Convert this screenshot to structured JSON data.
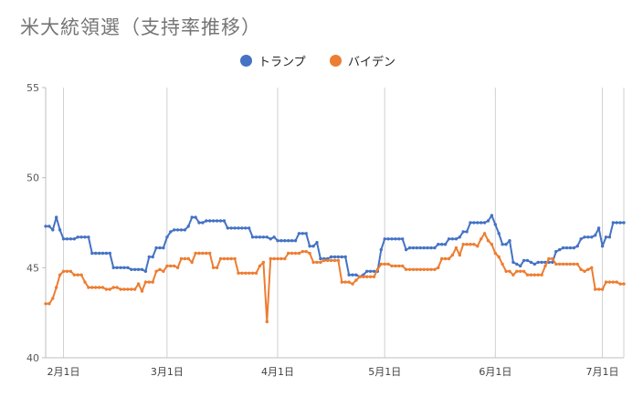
{
  "chart_data": {
    "type": "line",
    "title": "米大統領選（支持率推移）",
    "ylim": [
      40,
      55
    ],
    "yticks": [
      "40",
      "45",
      "50",
      "55"
    ],
    "xlim": [
      "2020-01-27",
      "2020-07-07"
    ],
    "xticks": [
      {
        "date": "2020-02-01",
        "label": "2月1日"
      },
      {
        "date": "2020-03-01",
        "label": "3月1日"
      },
      {
        "date": "2020-04-01",
        "label": "4月1日"
      },
      {
        "date": "2020-05-01",
        "label": "5月1日"
      },
      {
        "date": "2020-06-01",
        "label": "6月1日"
      },
      {
        "date": "2020-07-01",
        "label": "7月1日"
      }
    ],
    "grid": "vertical lines at month starts",
    "legend": "top-center",
    "series": [
      {
        "name": "トランプ",
        "color": "#4472c4",
        "points": [
          [
            "2020-01-27",
            47.3
          ],
          [
            "2020-01-28",
            47.3
          ],
          [
            "2020-01-29",
            47.1
          ],
          [
            "2020-01-30",
            47.8
          ],
          [
            "2020-01-31",
            47.1
          ],
          [
            "2020-02-01",
            46.6
          ],
          [
            "2020-02-03",
            46.6
          ],
          [
            "2020-02-05",
            46.7
          ],
          [
            "2020-02-08",
            46.7
          ],
          [
            "2020-02-09",
            45.8
          ],
          [
            "2020-02-14",
            45.8
          ],
          [
            "2020-02-15",
            45.0
          ],
          [
            "2020-02-19",
            45.0
          ],
          [
            "2020-02-20",
            44.9
          ],
          [
            "2020-02-23",
            44.9
          ],
          [
            "2020-02-24",
            44.8
          ],
          [
            "2020-02-25",
            45.6
          ],
          [
            "2020-02-26",
            45.6
          ],
          [
            "2020-02-27",
            46.1
          ],
          [
            "2020-02-29",
            46.1
          ],
          [
            "2020-03-01",
            46.7
          ],
          [
            "2020-03-02",
            47.0
          ],
          [
            "2020-03-03",
            47.1
          ],
          [
            "2020-03-06",
            47.1
          ],
          [
            "2020-03-07",
            47.3
          ],
          [
            "2020-03-08",
            47.8
          ],
          [
            "2020-03-09",
            47.8
          ],
          [
            "2020-03-10",
            47.5
          ],
          [
            "2020-03-11",
            47.5
          ],
          [
            "2020-03-12",
            47.6
          ],
          [
            "2020-03-17",
            47.6
          ],
          [
            "2020-03-18",
            47.2
          ],
          [
            "2020-03-24",
            47.2
          ],
          [
            "2020-03-25",
            46.7
          ],
          [
            "2020-03-29",
            46.7
          ],
          [
            "2020-03-30",
            46.6
          ],
          [
            "2020-03-31",
            46.7
          ],
          [
            "2020-04-01",
            46.5
          ],
          [
            "2020-04-06",
            46.5
          ],
          [
            "2020-04-07",
            46.9
          ],
          [
            "2020-04-09",
            46.9
          ],
          [
            "2020-04-10",
            46.2
          ],
          [
            "2020-04-11",
            46.2
          ],
          [
            "2020-04-12",
            46.4
          ],
          [
            "2020-04-13",
            45.5
          ],
          [
            "2020-04-15",
            45.5
          ],
          [
            "2020-04-16",
            45.6
          ],
          [
            "2020-04-20",
            45.6
          ],
          [
            "2020-04-21",
            44.6
          ],
          [
            "2020-04-24",
            44.5
          ],
          [
            "2020-04-25",
            44.6
          ],
          [
            "2020-04-26",
            44.8
          ],
          [
            "2020-04-29",
            44.8
          ],
          [
            "2020-04-30",
            46.0
          ],
          [
            "2020-05-01",
            46.6
          ],
          [
            "2020-05-06",
            46.6
          ],
          [
            "2020-05-07",
            46.0
          ],
          [
            "2020-05-08",
            46.1
          ],
          [
            "2020-05-15",
            46.1
          ],
          [
            "2020-05-16",
            46.3
          ],
          [
            "2020-05-18",
            46.3
          ],
          [
            "2020-05-19",
            46.6
          ],
          [
            "2020-05-22",
            46.7
          ],
          [
            "2020-05-23",
            47.0
          ],
          [
            "2020-05-24",
            47.0
          ],
          [
            "2020-05-25",
            47.5
          ],
          [
            "2020-05-29",
            47.5
          ],
          [
            "2020-05-30",
            47.6
          ],
          [
            "2020-05-31",
            47.9
          ],
          [
            "2020-06-01",
            47.4
          ],
          [
            "2020-06-02",
            46.9
          ],
          [
            "2020-06-03",
            46.3
          ],
          [
            "2020-06-05",
            46.5
          ],
          [
            "2020-06-06",
            45.3
          ],
          [
            "2020-06-07",
            45.2
          ],
          [
            "2020-06-08",
            45.1
          ],
          [
            "2020-06-09",
            45.4
          ],
          [
            "2020-06-11",
            45.3
          ],
          [
            "2020-06-12",
            45.2
          ],
          [
            "2020-06-13",
            45.3
          ],
          [
            "2020-06-17",
            45.3
          ],
          [
            "2020-06-18",
            45.9
          ],
          [
            "2020-06-19",
            46.0
          ],
          [
            "2020-06-20",
            46.1
          ],
          [
            "2020-06-23",
            46.1
          ],
          [
            "2020-06-24",
            46.2
          ],
          [
            "2020-06-25",
            46.6
          ],
          [
            "2020-06-26",
            46.7
          ],
          [
            "2020-06-29",
            46.8
          ],
          [
            "2020-06-30",
            47.2
          ],
          [
            "2020-07-01",
            46.2
          ],
          [
            "2020-07-02",
            46.7
          ],
          [
            "2020-07-03",
            46.7
          ],
          [
            "2020-07-04",
            47.5
          ],
          [
            "2020-07-07",
            47.5
          ]
        ]
      },
      {
        "name": "バイデン",
        "color": "#ed7d31",
        "points": [
          [
            "2020-01-27",
            43.0
          ],
          [
            "2020-01-28",
            43.0
          ],
          [
            "2020-01-29",
            43.3
          ],
          [
            "2020-01-30",
            43.9
          ],
          [
            "2020-01-31",
            44.6
          ],
          [
            "2020-02-01",
            44.8
          ],
          [
            "2020-02-03",
            44.8
          ],
          [
            "2020-02-04",
            44.6
          ],
          [
            "2020-02-06",
            44.6
          ],
          [
            "2020-02-07",
            44.2
          ],
          [
            "2020-02-08",
            43.9
          ],
          [
            "2020-02-12",
            43.9
          ],
          [
            "2020-02-13",
            43.8
          ],
          [
            "2020-02-15",
            43.9
          ],
          [
            "2020-02-16",
            43.9
          ],
          [
            "2020-02-17",
            43.8
          ],
          [
            "2020-02-21",
            43.8
          ],
          [
            "2020-02-22",
            44.1
          ],
          [
            "2020-02-23",
            43.7
          ],
          [
            "2020-02-24",
            44.2
          ],
          [
            "2020-02-26",
            44.2
          ],
          [
            "2020-02-27",
            44.8
          ],
          [
            "2020-02-28",
            44.9
          ],
          [
            "2020-02-29",
            44.8
          ],
          [
            "2020-03-01",
            45.1
          ],
          [
            "2020-03-03",
            45.1
          ],
          [
            "2020-03-04",
            45.0
          ],
          [
            "2020-03-05",
            45.5
          ],
          [
            "2020-03-07",
            45.5
          ],
          [
            "2020-03-08",
            45.3
          ],
          [
            "2020-03-09",
            45.8
          ],
          [
            "2020-03-13",
            45.8
          ],
          [
            "2020-03-14",
            45.0
          ],
          [
            "2020-03-15",
            45.0
          ],
          [
            "2020-03-16",
            45.5
          ],
          [
            "2020-03-20",
            45.5
          ],
          [
            "2020-03-21",
            44.7
          ],
          [
            "2020-03-26",
            44.7
          ],
          [
            "2020-03-27",
            45.1
          ],
          [
            "2020-03-28",
            45.3
          ],
          [
            "2020-03-29",
            42.0
          ],
          [
            "2020-03-30",
            45.5
          ],
          [
            "2020-04-03",
            45.5
          ],
          [
            "2020-04-04",
            45.8
          ],
          [
            "2020-04-07",
            45.8
          ],
          [
            "2020-04-08",
            45.9
          ],
          [
            "2020-04-09",
            45.9
          ],
          [
            "2020-04-10",
            45.8
          ],
          [
            "2020-04-11",
            45.3
          ],
          [
            "2020-04-13",
            45.3
          ],
          [
            "2020-04-14",
            45.4
          ],
          [
            "2020-04-18",
            45.4
          ],
          [
            "2020-04-19",
            44.2
          ],
          [
            "2020-04-21",
            44.2
          ],
          [
            "2020-04-22",
            44.1
          ],
          [
            "2020-04-23",
            44.3
          ],
          [
            "2020-04-24",
            44.5
          ],
          [
            "2020-04-28",
            44.5
          ],
          [
            "2020-04-29",
            44.9
          ],
          [
            "2020-04-30",
            45.2
          ],
          [
            "2020-05-02",
            45.2
          ],
          [
            "2020-05-03",
            45.1
          ],
          [
            "2020-05-06",
            45.1
          ],
          [
            "2020-05-07",
            44.9
          ],
          [
            "2020-05-15",
            44.9
          ],
          [
            "2020-05-16",
            45.0
          ],
          [
            "2020-05-17",
            45.5
          ],
          [
            "2020-05-19",
            45.5
          ],
          [
            "2020-05-20",
            45.7
          ],
          [
            "2020-05-21",
            46.1
          ],
          [
            "2020-05-22",
            45.7
          ],
          [
            "2020-05-23",
            46.3
          ],
          [
            "2020-05-26",
            46.3
          ],
          [
            "2020-05-27",
            46.2
          ],
          [
            "2020-05-28",
            46.6
          ],
          [
            "2020-05-29",
            46.9
          ],
          [
            "2020-05-30",
            46.5
          ],
          [
            "2020-05-31",
            46.3
          ],
          [
            "2020-06-01",
            45.8
          ],
          [
            "2020-06-02",
            45.6
          ],
          [
            "2020-06-03",
            45.2
          ],
          [
            "2020-06-04",
            44.8
          ],
          [
            "2020-06-05",
            44.8
          ],
          [
            "2020-06-06",
            44.6
          ],
          [
            "2020-06-07",
            44.8
          ],
          [
            "2020-06-09",
            44.8
          ],
          [
            "2020-06-10",
            44.6
          ],
          [
            "2020-06-14",
            44.6
          ],
          [
            "2020-06-15",
            45.1
          ],
          [
            "2020-06-16",
            45.5
          ],
          [
            "2020-06-17",
            45.5
          ],
          [
            "2020-06-18",
            45.2
          ],
          [
            "2020-06-24",
            45.2
          ],
          [
            "2020-06-25",
            44.9
          ],
          [
            "2020-06-26",
            44.8
          ],
          [
            "2020-06-27",
            44.9
          ],
          [
            "2020-06-28",
            45.0
          ],
          [
            "2020-06-29",
            43.8
          ],
          [
            "2020-07-01",
            43.8
          ],
          [
            "2020-07-02",
            44.2
          ],
          [
            "2020-07-05",
            44.2
          ],
          [
            "2020-07-06",
            44.1
          ],
          [
            "2020-07-07",
            44.1
          ]
        ]
      }
    ]
  }
}
